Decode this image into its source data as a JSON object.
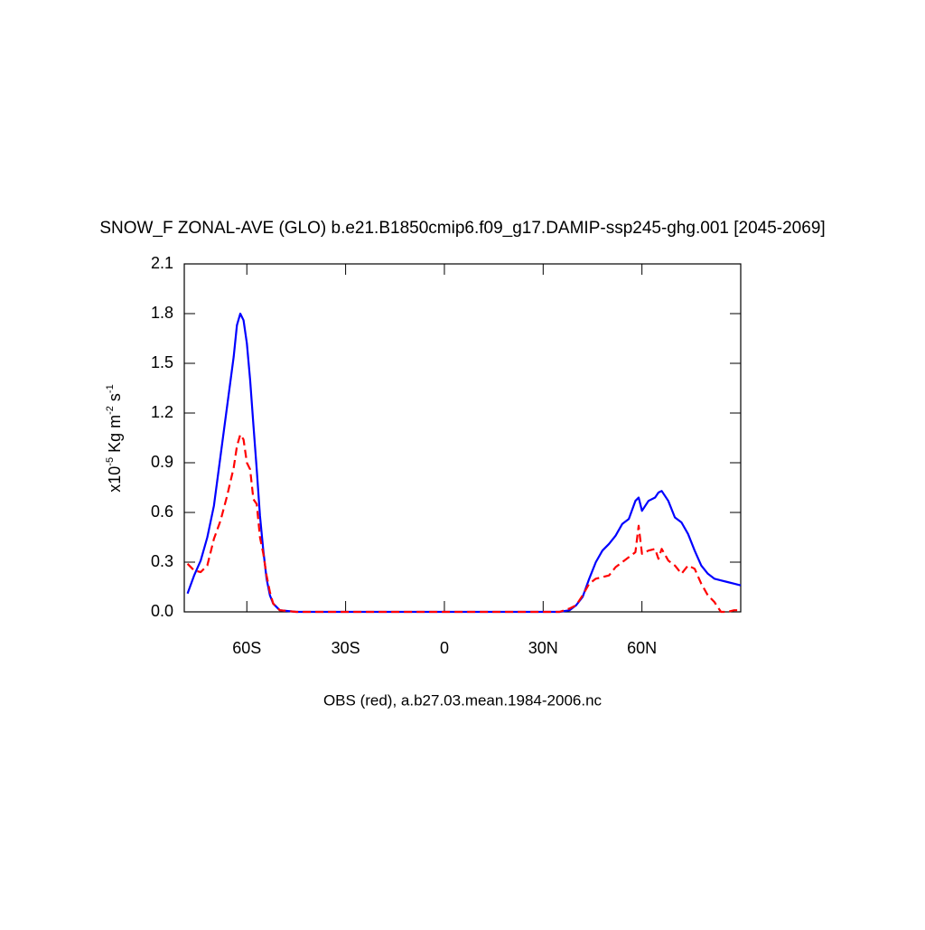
{
  "chart_data": {
    "type": "line",
    "title": "SNOW_F ZONAL-AVE (GLO) b.e21.B1850cmip6.f09_g17.DAMIP-ssp245-ghg.001 [2045-2069]",
    "subtitle": "OBS (red), a.b27.03.mean.1984-2006.nc",
    "ylabel_parts": [
      "x10",
      "-5",
      " Kg m",
      "-2",
      " s",
      "-1"
    ],
    "xlim": [
      -79,
      90
    ],
    "ylim": [
      0,
      2.1
    ],
    "xticks": [
      {
        "value": -60,
        "label": "60S"
      },
      {
        "value": -30,
        "label": "30S"
      },
      0,
      {
        "value": 30,
        "label": "30N"
      },
      {
        "value": 60,
        "label": "60N"
      }
    ],
    "yticks": [
      {
        "value": 0,
        "label": "0.0"
      },
      0.3,
      0.6,
      0.9,
      1.2,
      1.5,
      1.8,
      2.1
    ],
    "x": [
      -78,
      -76,
      -74,
      -72,
      -70,
      -68,
      -66,
      -64,
      -63,
      -62,
      -61,
      -60,
      -59,
      -58,
      -57,
      -56,
      -55,
      -54,
      -53,
      -52,
      -50,
      -45,
      0,
      35,
      38,
      40,
      42,
      44,
      46,
      48,
      50,
      52,
      54,
      56,
      58,
      59,
      60,
      62,
      64,
      65,
      66,
      68,
      70,
      72,
      74,
      76,
      78,
      80,
      82,
      84,
      86,
      88,
      90
    ],
    "series": [
      {
        "color": "#0000ff",
        "dash": false,
        "values": [
          0.11,
          0.22,
          0.31,
          0.45,
          0.64,
          0.94,
          1.24,
          1.54,
          1.73,
          1.8,
          1.76,
          1.62,
          1.4,
          1.13,
          0.86,
          0.58,
          0.37,
          0.2,
          0.1,
          0.05,
          0.01,
          0,
          0,
          0,
          0.01,
          0.04,
          0.09,
          0.2,
          0.3,
          0.37,
          0.41,
          0.46,
          0.53,
          0.56,
          0.67,
          0.69,
          0.61,
          0.67,
          0.69,
          0.72,
          0.73,
          0.67,
          0.57,
          0.54,
          0.47,
          0.37,
          0.28,
          0.23,
          0.2,
          0.19,
          0.18,
          0.17,
          0.16
        ]
      },
      {
        "color": "#ff0000",
        "dash": true,
        "values": [
          0.29,
          0.25,
          0.24,
          0.28,
          0.44,
          0.55,
          0.7,
          0.87,
          1.0,
          1.07,
          1.04,
          0.9,
          0.86,
          0.68,
          0.65,
          0.45,
          0.35,
          0.22,
          0.12,
          0.05,
          0.01,
          0,
          0,
          0,
          0.02,
          0.04,
          0.1,
          0.17,
          0.2,
          0.21,
          0.22,
          0.27,
          0.3,
          0.33,
          0.36,
          0.52,
          0.35,
          0.37,
          0.38,
          0.32,
          0.38,
          0.31,
          0.28,
          0.23,
          0.28,
          0.26,
          0.17,
          0.1,
          0.06,
          0,
          0,
          0.01,
          0.01
        ]
      }
    ]
  }
}
